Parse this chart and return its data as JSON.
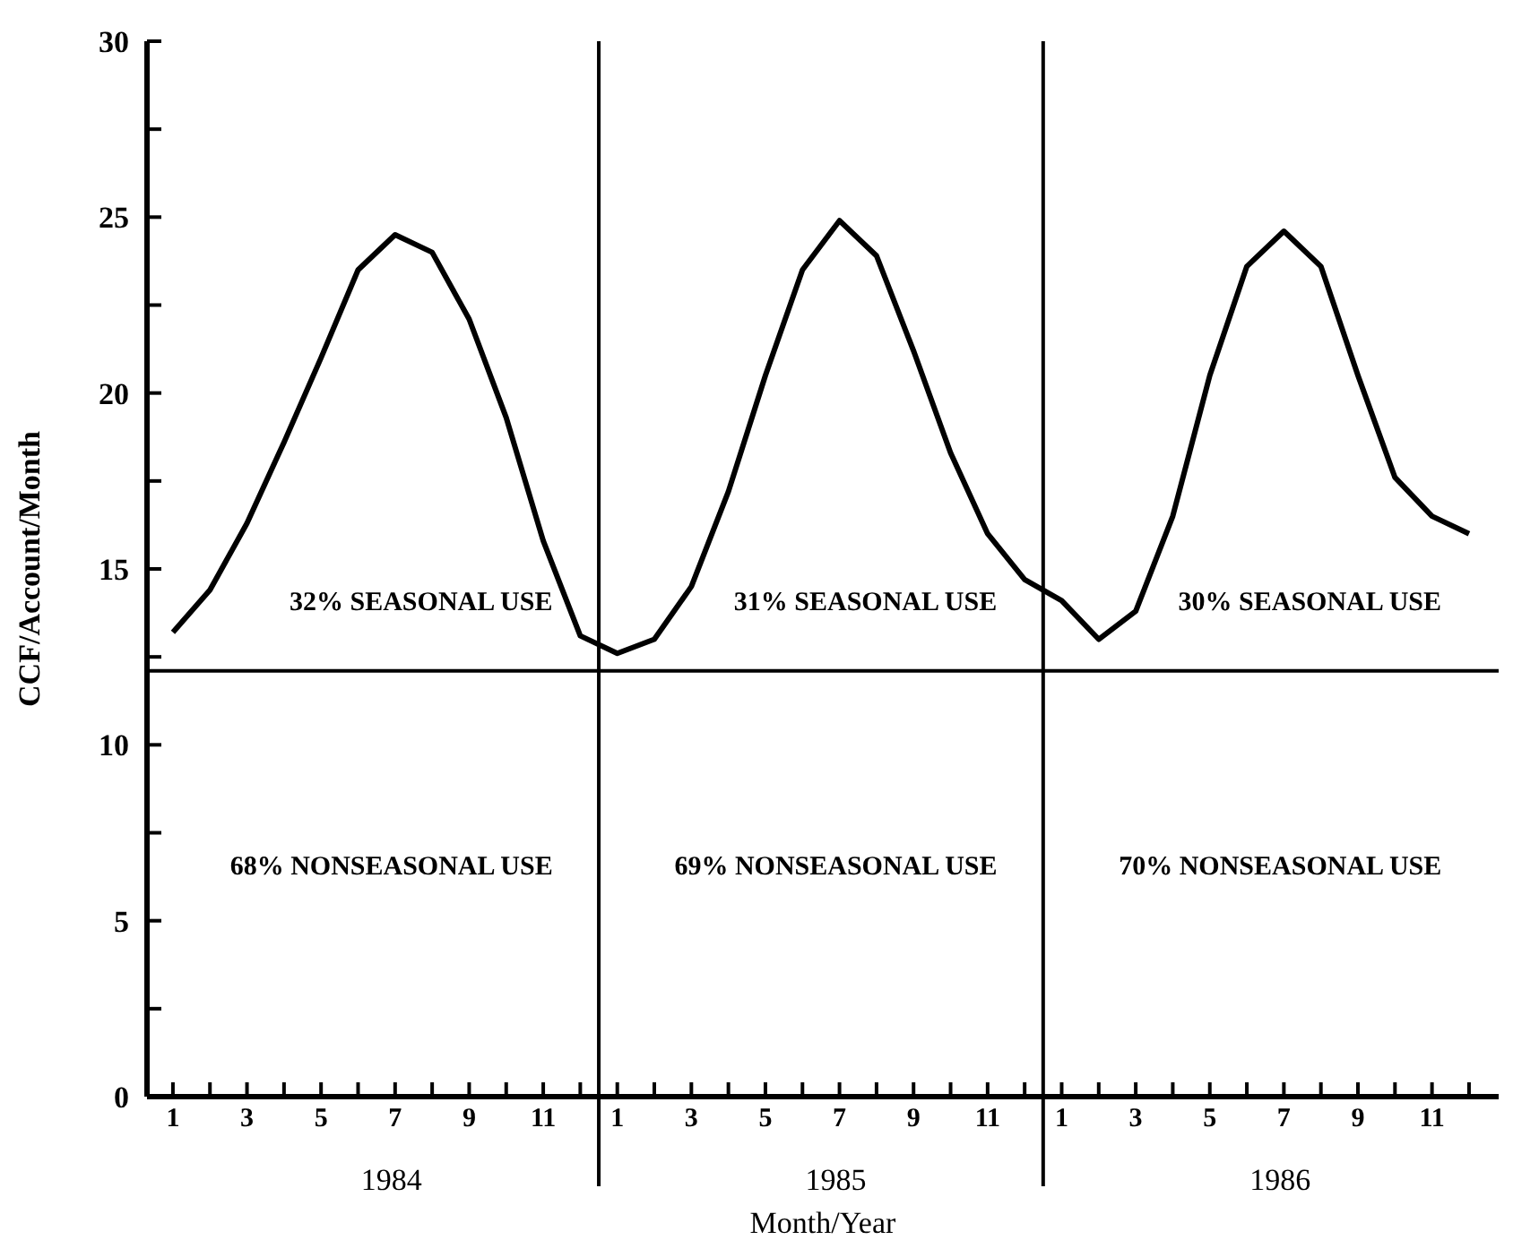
{
  "chart_data": {
    "type": "line",
    "xlabel": "Month/Year",
    "ylabel": "CCF/Account/Month",
    "categories": [
      "1",
      null,
      "3",
      null,
      "5",
      null,
      "7",
      null,
      "9",
      null,
      "11",
      null,
      "1",
      null,
      "3",
      null,
      "5",
      null,
      "7",
      null,
      "9",
      null,
      "11",
      null,
      "1",
      null,
      "3",
      null,
      "5",
      null,
      "7",
      null,
      "9",
      null,
      "11",
      null
    ],
    "series": [
      {
        "color": "#000000",
        "values": [
          13.2,
          14.4,
          16.3,
          18.6,
          21.0,
          23.5,
          24.5,
          24.0,
          22.1,
          19.3,
          15.8,
          13.1,
          12.6,
          13.0,
          14.5,
          17.2,
          20.5,
          23.5,
          24.9,
          23.9,
          21.2,
          18.3,
          16.0,
          14.7,
          14.1,
          13.0,
          13.8,
          16.5,
          20.5,
          23.6,
          24.6,
          23.6,
          20.5,
          17.6,
          16.5,
          16.0
        ]
      }
    ],
    "ylim": [
      0,
      30
    ],
    "yticks": [
      0,
      {
        "value": 2.5,
        "label": null
      },
      5,
      {
        "value": 7.5,
        "label": null
      },
      10,
      {
        "value": 12.5,
        "label": null
      },
      15,
      {
        "value": 17.5,
        "label": null
      },
      20,
      {
        "value": 22.5,
        "label": null
      },
      25,
      {
        "value": 27.5,
        "label": null
      },
      30
    ],
    "marker": "none",
    "ref_lines": [
      {
        "axis": "y",
        "value": 12.1,
        "color": "#000000"
      }
    ],
    "annotations": [
      "32% SEASONAL USE",
      "31% SEASONAL USE",
      "30% SEASONAL USE",
      "68% NONSEASONAL USE",
      "69% NONSEASONAL USE",
      "70% NONSEASONAL USE",
      "1984",
      "1985",
      "1986"
    ]
  }
}
